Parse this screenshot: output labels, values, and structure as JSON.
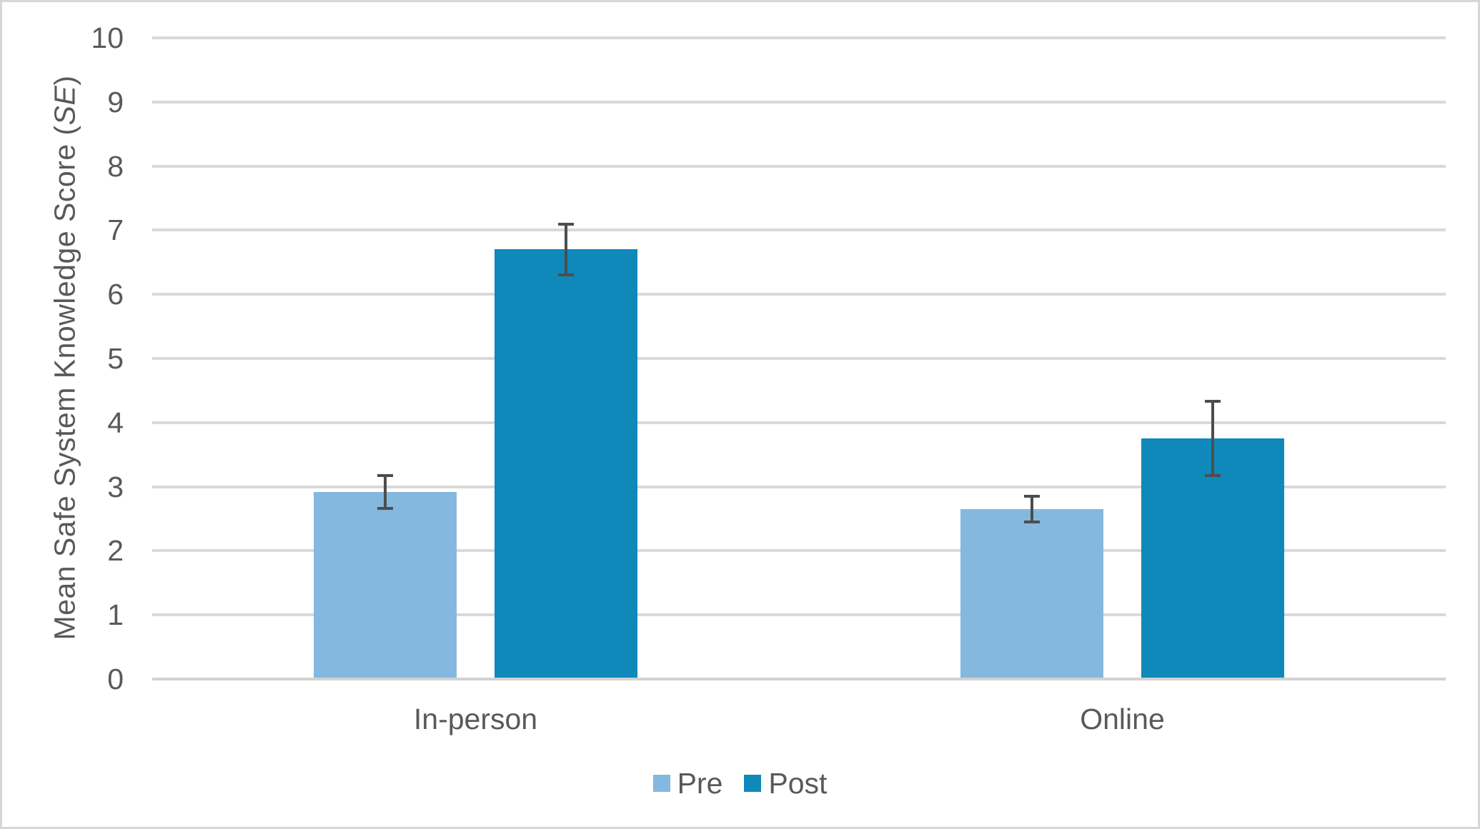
{
  "chart_data": {
    "type": "bar",
    "title": "",
    "categories": [
      "In-person",
      "Online"
    ],
    "series": [
      {
        "name": "Pre",
        "color": "#85B8DF",
        "values": [
          2.92,
          2.65
        ],
        "errors": [
          0.28,
          0.22
        ]
      },
      {
        "name": "Post",
        "color": "#0E89BA",
        "values": [
          6.7,
          3.75
        ],
        "errors": [
          0.42,
          0.6
        ]
      }
    ],
    "error_bar_meaning": "standard error",
    "ylabel_prefix": "Mean Safe System Knowledge Score (",
    "ylabel_italic": "SE",
    "ylabel_suffix": ")",
    "xlabel": "",
    "ylim": [
      0,
      10
    ],
    "ytick_step": 1,
    "grid": "horizontal",
    "legend_position": "bottom"
  },
  "colors": {
    "pre_bar": "#85B8DF",
    "post_bar": "#0E89BA",
    "text": "#595959",
    "gridline": "#D9D9D9",
    "axis_line": "#D2D2D2",
    "error_bar": "#4D4D4D",
    "frame_border": "#D7D7D7",
    "background": "#FFFFFF"
  }
}
